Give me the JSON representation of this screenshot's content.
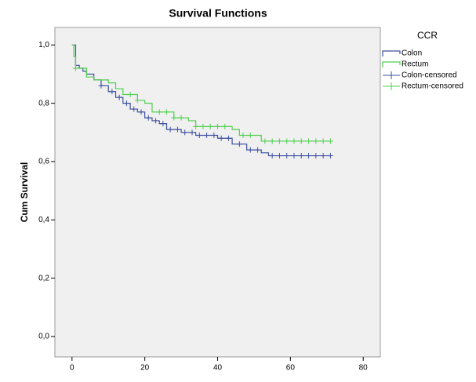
{
  "chart_data": {
    "type": "step",
    "title": "Survival Functions",
    "ylabel": "Cum Survival",
    "legend_title": "CCR",
    "legend": "right",
    "xlim": [
      -4.7,
      84.7
    ],
    "ylim": [
      -0.07,
      1.06
    ],
    "xticks": [
      0,
      20,
      40,
      60,
      80
    ],
    "yticks": [
      {
        "value": 0,
        "label": "0,0"
      },
      {
        "value": 0.2,
        "label": "0,2"
      },
      {
        "value": 0.4,
        "label": "0,4"
      },
      {
        "value": 0.6,
        "label": "0,6"
      },
      {
        "value": 0.8,
        "label": "0,8"
      },
      {
        "value": 1,
        "label": "1,0"
      }
    ],
    "series": [
      {
        "name": "Colon",
        "color": "#3d4f9f",
        "marker": "step",
        "x": [
          0,
          1,
          2,
          3,
          4,
          6,
          8,
          10,
          12,
          14,
          16,
          18,
          20,
          22,
          24,
          26,
          30,
          34,
          40,
          44,
          48,
          52,
          54,
          71
        ],
        "values": [
          1.0,
          0.93,
          0.92,
          0.91,
          0.9,
          0.88,
          0.86,
          0.84,
          0.82,
          0.8,
          0.78,
          0.77,
          0.75,
          0.74,
          0.73,
          0.71,
          0.7,
          0.69,
          0.68,
          0.66,
          0.64,
          0.63,
          0.62,
          0.62
        ]
      },
      {
        "name": "Rectum",
        "color": "#4ecf4e",
        "marker": "step",
        "x": [
          0,
          0.5,
          1,
          4,
          6,
          10,
          12,
          14,
          18,
          20,
          22,
          28,
          32,
          34,
          44,
          46,
          52,
          71
        ],
        "values": [
          1.0,
          0.96,
          0.92,
          0.89,
          0.88,
          0.87,
          0.85,
          0.83,
          0.81,
          0.8,
          0.77,
          0.75,
          0.74,
          0.72,
          0.71,
          0.69,
          0.67,
          0.67
        ]
      },
      {
        "name": "Colon-censored",
        "color": "#3d4f9f",
        "marker": "plus",
        "x": [
          8,
          11,
          13,
          15,
          17,
          19,
          21,
          23,
          25,
          27,
          29,
          31,
          33,
          35,
          37,
          39,
          41,
          43,
          46,
          49,
          51,
          55,
          57,
          59,
          61,
          63,
          65,
          67,
          69,
          71
        ],
        "values": [
          0.86,
          0.84,
          0.82,
          0.8,
          0.78,
          0.77,
          0.75,
          0.74,
          0.73,
          0.71,
          0.71,
          0.7,
          0.7,
          0.69,
          0.69,
          0.69,
          0.68,
          0.68,
          0.66,
          0.64,
          0.64,
          0.62,
          0.62,
          0.62,
          0.62,
          0.62,
          0.62,
          0.62,
          0.62,
          0.62
        ]
      },
      {
        "name": "Rectum-censored",
        "color": "#4ecf4e",
        "marker": "plus",
        "x": [
          1,
          16,
          18,
          24,
          26,
          28,
          30,
          34,
          36,
          38,
          40,
          42,
          47,
          49,
          53,
          55,
          57,
          59,
          61,
          63,
          65,
          67,
          69,
          71
        ],
        "values": [
          0.92,
          0.83,
          0.81,
          0.77,
          0.77,
          0.75,
          0.75,
          0.72,
          0.72,
          0.72,
          0.72,
          0.72,
          0.69,
          0.69,
          0.67,
          0.67,
          0.67,
          0.67,
          0.67,
          0.67,
          0.67,
          0.67,
          0.67,
          0.67
        ]
      }
    ]
  }
}
